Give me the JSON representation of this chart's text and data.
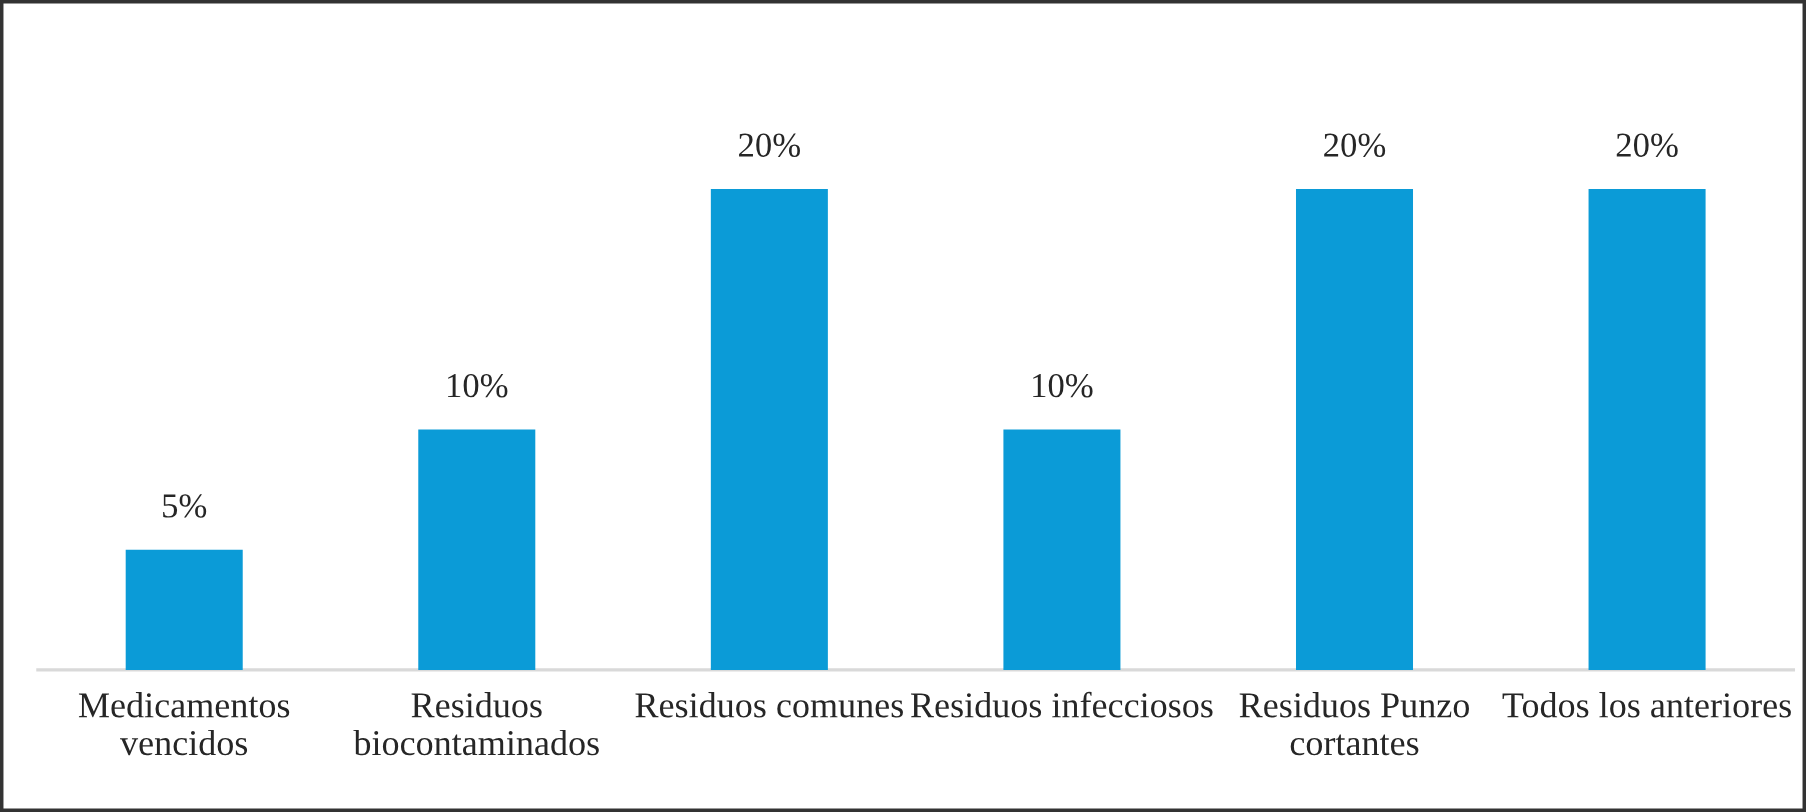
{
  "chart_data": {
    "type": "bar",
    "categories": [
      "Medicamentos\nvencidos",
      "Residuos\nbiocontaminados",
      "Residuos comunes",
      "Residuos infecciosos",
      "Residuos Punzo\ncortantes",
      "Todos los anteriores"
    ],
    "values": [
      5,
      10,
      20,
      10,
      20,
      20
    ],
    "value_labels": [
      "5%",
      "10%",
      "20%",
      "10%",
      "20%",
      "20%"
    ],
    "color": "#0b9bd7",
    "grid": false,
    "legend": false
  }
}
